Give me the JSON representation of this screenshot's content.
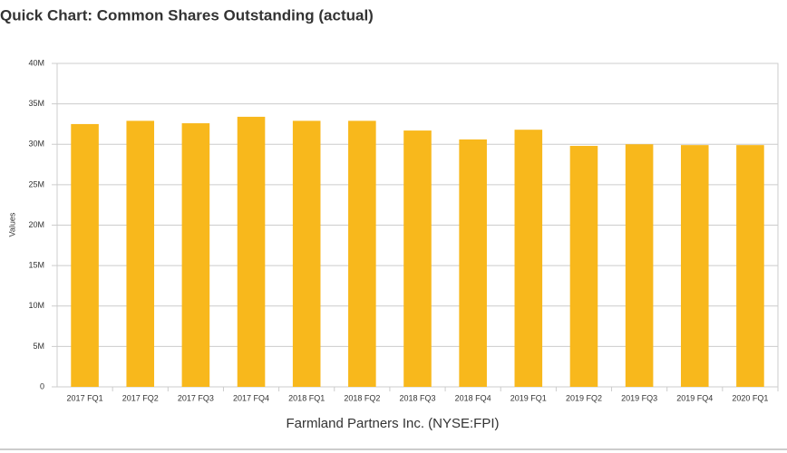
{
  "chart_data": {
    "type": "bar",
    "title": "Quick Chart: Common Shares Outstanding (actual)",
    "subtitle": "Farmland Partners Inc. (NYSE:FPI)",
    "y_label": "Values",
    "categories": [
      "2017 FQ1",
      "2017 FQ2",
      "2017 FQ3",
      "2017 FQ4",
      "2018 FQ1",
      "2018 FQ2",
      "2018 FQ3",
      "2018 FQ4",
      "2019 FQ1",
      "2019 FQ2",
      "2019 FQ3",
      "2019 FQ4",
      "2020 FQ1"
    ],
    "values": [
      32500000,
      32900000,
      32600000,
      33400000,
      32900000,
      32900000,
      31700000,
      30600000,
      31800000,
      29800000,
      30000000,
      29900000,
      29900000
    ],
    "color": "#f8b81c",
    "ylim": [
      0,
      40000000
    ],
    "yticks": [
      0,
      {
        "value": 5000000,
        "label": "5M"
      },
      {
        "value": 10000000,
        "label": "10M"
      },
      {
        "value": 15000000,
        "label": "15M"
      },
      {
        "value": 20000000,
        "label": "20M"
      },
      {
        "value": 25000000,
        "label": "25M"
      },
      {
        "value": 30000000,
        "label": "30M"
      },
      {
        "value": 35000000,
        "label": "35M"
      },
      {
        "value": 40000000,
        "label": "40M"
      }
    ],
    "grid": true
  }
}
